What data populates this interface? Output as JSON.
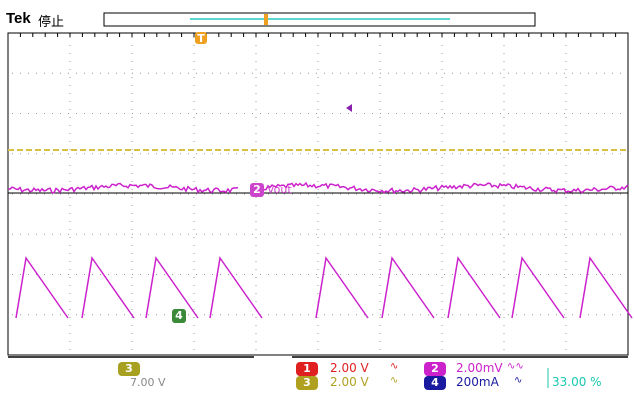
{
  "header": {
    "brand": "Tek",
    "status": "停止"
  },
  "markers": {
    "trigger": "T",
    "ch2_label": "2",
    "ch2_name": "Vout",
    "ch4_label": "4",
    "ch3_label": "3"
  },
  "channels": [
    {
      "num": "1",
      "scale": "2.00 V",
      "coupling": "∿",
      "color": "#e02020"
    },
    {
      "num": "2",
      "scale": "2.00mV",
      "coupling": "∿∿",
      "color": "#cc22cc"
    },
    {
      "num": "3",
      "scale": "2.00 V",
      "coupling": "∿",
      "color": "#b0a020"
    },
    {
      "num": "4",
      "scale": "200mA",
      "coupling": "∿",
      "color": "#1a1aa0"
    }
  ],
  "trigger_readout": {
    "value": "33.00 %",
    "color": "#18c8b0"
  },
  "math": {
    "label": "3",
    "value": "7.00 V"
  },
  "colors": {
    "ch2_wave": "#cc22cc",
    "grid": "#000000",
    "trigger": "#f0a020"
  }
}
